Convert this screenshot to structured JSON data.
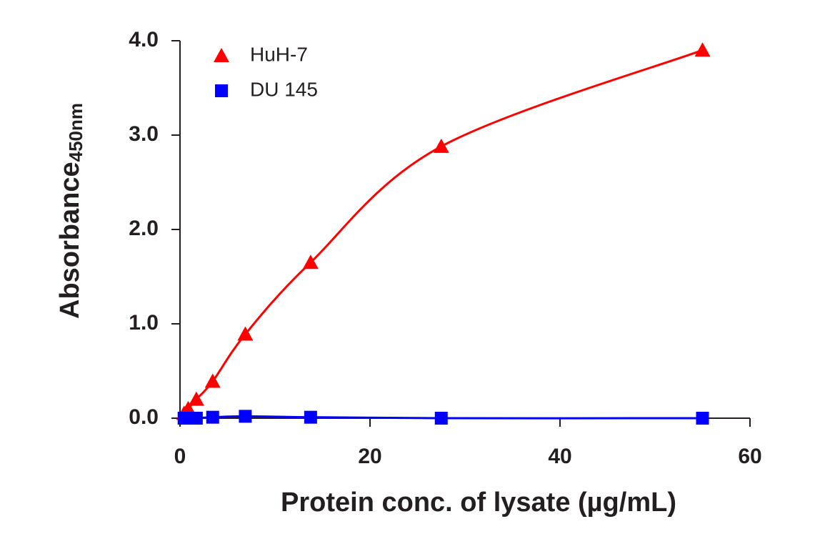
{
  "chart_data": {
    "type": "line",
    "x_label": "Protein conc. of lysate (µg/mL)",
    "y_label": "Absorbance",
    "y_label_sub": "450nm",
    "xlim": [
      0,
      60
    ],
    "xticks": [
      0,
      20,
      40,
      60
    ],
    "ylim": [
      0,
      4
    ],
    "yticks": [
      {
        "value": 0,
        "label": "0.0"
      },
      {
        "value": 1,
        "label": "1.0"
      },
      {
        "value": 2,
        "label": "2.0"
      },
      {
        "value": 3,
        "label": "3.0"
      },
      {
        "value": 4,
        "label": "4.0"
      }
    ],
    "legend": "upper-left",
    "x": [
      0.43,
      0.86,
      1.72,
      3.44,
      6.875,
      13.75,
      27.5,
      55
    ],
    "series": [
      {
        "name": "HuH-7",
        "color": "#ff0000",
        "marker": "triangle",
        "values": [
          0.05,
          0.1,
          0.2,
          0.39,
          0.89,
          1.65,
          2.88,
          3.9
        ]
      },
      {
        "name": "DU 145",
        "color": "#0000ff",
        "marker": "square",
        "values": [
          0,
          0,
          0,
          0.01,
          0.02,
          0.01,
          0,
          0
        ]
      }
    ]
  }
}
